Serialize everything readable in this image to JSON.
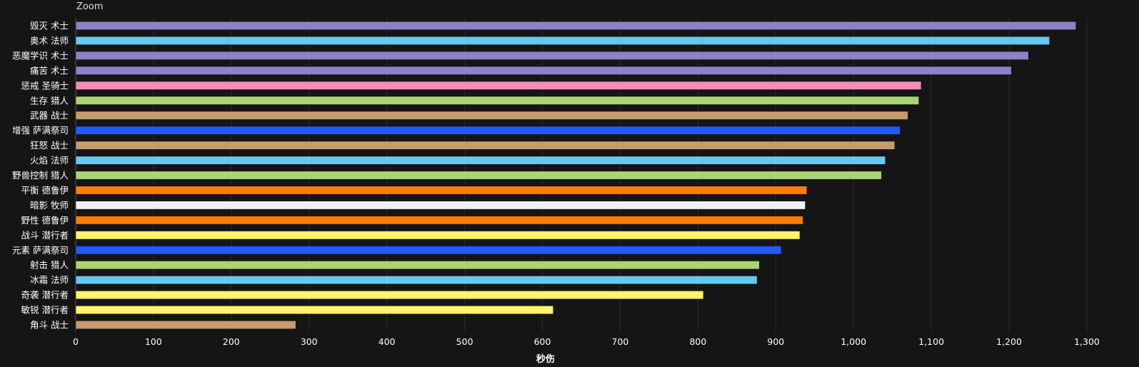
{
  "header": {
    "zoom_label": "Zoom"
  },
  "chart_data": {
    "type": "bar",
    "orientation": "horizontal",
    "xlabel": "秒伤",
    "ylabel": "",
    "xlim": [
      0,
      1300
    ],
    "xticks": [
      0,
      100,
      200,
      300,
      400,
      500,
      600,
      700,
      800,
      900,
      1000,
      1100,
      1200,
      1300
    ],
    "xtick_labels": [
      "0",
      "100",
      "200",
      "300",
      "400",
      "500",
      "600",
      "700",
      "800",
      "900",
      "1,000",
      "1,100",
      "1,200",
      "1,300"
    ],
    "grid": true,
    "categories": [
      "毁灭 术士",
      "奥术 法师",
      "恶魔学识 术士",
      "痛苦 术士",
      "惩戒 圣骑士",
      "生存 猎人",
      "武器 战士",
      "增强 萨满祭司",
      "狂怒 战士",
      "火焰 法师",
      "野兽控制 猎人",
      "平衡 德鲁伊",
      "暗影 牧师",
      "野性 德鲁伊",
      "战斗 潜行者",
      "元素 萨满祭司",
      "射击 猎人",
      "冰霜 法师",
      "奇袭 潜行者",
      "敏锐 潜行者",
      "角斗 战士"
    ],
    "values": [
      1286,
      1252,
      1225,
      1203,
      1087,
      1084,
      1070,
      1060,
      1053,
      1041,
      1036,
      940,
      938,
      935,
      931,
      907,
      879,
      876,
      807,
      614,
      283
    ],
    "colors": [
      "#8c82c8",
      "#66c8ee",
      "#8c82c8",
      "#8c82c8",
      "#f48cba",
      "#aad372",
      "#c69b6d",
      "#2359ff",
      "#c69b6d",
      "#66c8ee",
      "#aad372",
      "#ff7c0a",
      "#f0f0f0",
      "#ff7c0a",
      "#fff468",
      "#2359ff",
      "#aad372",
      "#66c8ee",
      "#fff468",
      "#fff468",
      "#c69b6d"
    ]
  }
}
